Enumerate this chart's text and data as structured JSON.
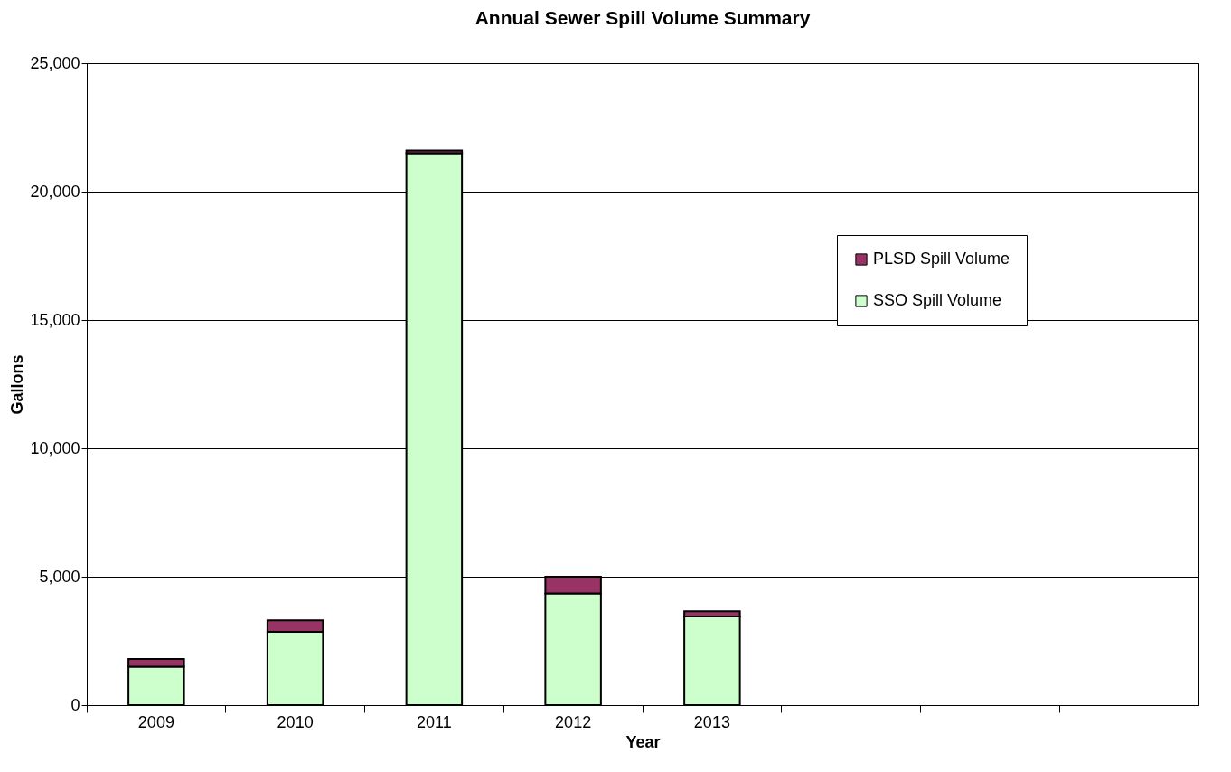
{
  "chart_data": {
    "type": "bar",
    "title": "Annual Sewer Spill Volume Summary",
    "xlabel": "Year",
    "ylabel": "Gallons",
    "categories": [
      "2009",
      "2010",
      "2011",
      "2012",
      "2013",
      null,
      null,
      null
    ],
    "stacked": true,
    "series": [
      {
        "name": "SSO Spill Volume",
        "color": "#ccffcc",
        "values": [
          1500,
          2850,
          21500,
          4350,
          3450,
          null,
          null,
          null
        ]
      },
      {
        "name": "PLSD Spill Volume",
        "color": "#993366",
        "values": [
          300,
          450,
          100,
          650,
          200,
          null,
          null,
          null
        ]
      }
    ],
    "ylim": [
      0,
      25000
    ],
    "yticks": [
      {
        "value": 0,
        "label": "0"
      },
      {
        "value": 5000,
        "label": "5,000"
      },
      {
        "value": 10000,
        "label": "10,000"
      },
      {
        "value": 15000,
        "label": "15,000"
      },
      {
        "value": 20000,
        "label": "20,000"
      },
      {
        "value": 25000,
        "label": "25,000"
      }
    ],
    "grid": "y",
    "legend": "top right"
  }
}
